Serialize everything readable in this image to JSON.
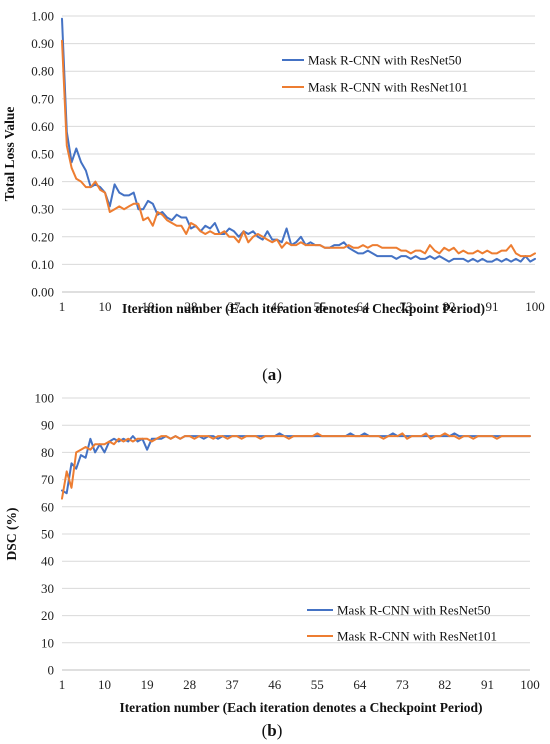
{
  "chart_data": [
    {
      "type": "line",
      "panel_label": "a",
      "xlabel": "Iteration number (Each iteration denotes a Checkpoint Period)",
      "ylabel": "Total Loss Value",
      "xlim": [
        1,
        100
      ],
      "ylim": [
        0,
        1.0
      ],
      "x_ticks": [
        1,
        10,
        19,
        28,
        37,
        46,
        55,
        64,
        73,
        82,
        91,
        100
      ],
      "y_ticks": [
        0.0,
        0.1,
        0.2,
        0.3,
        0.4,
        0.5,
        0.6,
        0.7,
        0.8,
        0.9,
        1.0
      ],
      "y_tick_labels": [
        "0.00",
        "0.10",
        "0.20",
        "0.30",
        "0.40",
        "0.50",
        "0.60",
        "0.70",
        "0.80",
        "0.90",
        "1.00"
      ],
      "grid": "horizontal",
      "legend_position": "top-right",
      "series": [
        {
          "name": "Mask R-CNN with ResNet50",
          "color": "#4472C4",
          "x": [
            1,
            2,
            3,
            4,
            5,
            6,
            7,
            8,
            9,
            10,
            11,
            12,
            13,
            14,
            15,
            16,
            17,
            18,
            19,
            20,
            21,
            22,
            23,
            24,
            25,
            26,
            27,
            28,
            29,
            30,
            31,
            32,
            33,
            34,
            35,
            36,
            37,
            38,
            39,
            40,
            41,
            42,
            43,
            44,
            45,
            46,
            47,
            48,
            49,
            50,
            51,
            52,
            53,
            54,
            55,
            56,
            57,
            58,
            59,
            60,
            61,
            62,
            63,
            64,
            65,
            66,
            67,
            68,
            69,
            70,
            71,
            72,
            73,
            74,
            75,
            76,
            77,
            78,
            79,
            80,
            81,
            82,
            83,
            84,
            85,
            86,
            87,
            88,
            89,
            90,
            91,
            92,
            93,
            94,
            95,
            96,
            97,
            98,
            99,
            100
          ],
          "values": [
            0.99,
            0.58,
            0.47,
            0.52,
            0.47,
            0.44,
            0.38,
            0.39,
            0.38,
            0.36,
            0.31,
            0.39,
            0.36,
            0.35,
            0.35,
            0.36,
            0.3,
            0.3,
            0.33,
            0.32,
            0.28,
            0.29,
            0.27,
            0.26,
            0.28,
            0.27,
            0.27,
            0.23,
            0.24,
            0.22,
            0.24,
            0.23,
            0.25,
            0.21,
            0.21,
            0.23,
            0.22,
            0.2,
            0.22,
            0.21,
            0.22,
            0.2,
            0.19,
            0.22,
            0.19,
            0.19,
            0.18,
            0.23,
            0.17,
            0.18,
            0.2,
            0.17,
            0.18,
            0.17,
            0.17,
            0.16,
            0.16,
            0.17,
            0.17,
            0.18,
            0.16,
            0.15,
            0.14,
            0.14,
            0.15,
            0.14,
            0.13,
            0.13,
            0.13,
            0.13,
            0.12,
            0.13,
            0.13,
            0.12,
            0.13,
            0.12,
            0.12,
            0.13,
            0.12,
            0.13,
            0.12,
            0.11,
            0.12,
            0.12,
            0.12,
            0.11,
            0.12,
            0.11,
            0.12,
            0.11,
            0.11,
            0.12,
            0.11,
            0.12,
            0.11,
            0.12,
            0.11,
            0.13,
            0.11,
            0.12
          ]
        },
        {
          "name": "Mask R-CNN with ResNet101",
          "color": "#ED7D31",
          "x": [
            1,
            2,
            3,
            4,
            5,
            6,
            7,
            8,
            9,
            10,
            11,
            12,
            13,
            14,
            15,
            16,
            17,
            18,
            19,
            20,
            21,
            22,
            23,
            24,
            25,
            26,
            27,
            28,
            29,
            30,
            31,
            32,
            33,
            34,
            35,
            36,
            37,
            38,
            39,
            40,
            41,
            42,
            43,
            44,
            45,
            46,
            47,
            48,
            49,
            50,
            51,
            52,
            53,
            54,
            55,
            56,
            57,
            58,
            59,
            60,
            61,
            62,
            63,
            64,
            65,
            66,
            67,
            68,
            69,
            70,
            71,
            72,
            73,
            74,
            75,
            76,
            77,
            78,
            79,
            80,
            81,
            82,
            83,
            84,
            85,
            86,
            87,
            88,
            89,
            90,
            91,
            92,
            93,
            94,
            95,
            96,
            97,
            98,
            99,
            100
          ],
          "values": [
            0.91,
            0.53,
            0.45,
            0.41,
            0.4,
            0.38,
            0.38,
            0.4,
            0.37,
            0.36,
            0.29,
            0.3,
            0.31,
            0.3,
            0.31,
            0.32,
            0.32,
            0.26,
            0.27,
            0.24,
            0.29,
            0.28,
            0.26,
            0.25,
            0.24,
            0.24,
            0.21,
            0.25,
            0.24,
            0.22,
            0.21,
            0.22,
            0.21,
            0.21,
            0.22,
            0.2,
            0.2,
            0.18,
            0.22,
            0.18,
            0.2,
            0.21,
            0.2,
            0.19,
            0.18,
            0.19,
            0.16,
            0.18,
            0.17,
            0.17,
            0.18,
            0.17,
            0.17,
            0.17,
            0.17,
            0.16,
            0.16,
            0.16,
            0.16,
            0.16,
            0.17,
            0.16,
            0.16,
            0.17,
            0.16,
            0.17,
            0.17,
            0.16,
            0.16,
            0.16,
            0.16,
            0.15,
            0.15,
            0.14,
            0.15,
            0.15,
            0.14,
            0.17,
            0.15,
            0.14,
            0.16,
            0.15,
            0.16,
            0.14,
            0.15,
            0.14,
            0.14,
            0.15,
            0.14,
            0.15,
            0.14,
            0.14,
            0.15,
            0.15,
            0.17,
            0.14,
            0.13,
            0.13,
            0.13,
            0.14
          ]
        }
      ]
    },
    {
      "type": "line",
      "panel_label": "b",
      "xlabel": "Iteration number (Each iteration denotes a Checkpoint Period)",
      "ylabel": "DSC (%)",
      "xlim": [
        1,
        100
      ],
      "ylim": [
        0,
        100
      ],
      "x_ticks": [
        1,
        10,
        19,
        28,
        37,
        46,
        55,
        64,
        73,
        82,
        91,
        100
      ],
      "y_ticks": [
        0,
        10,
        20,
        30,
        40,
        50,
        60,
        70,
        80,
        90,
        100
      ],
      "y_tick_labels": [
        "0",
        "10",
        "20",
        "30",
        "40",
        "50",
        "60",
        "70",
        "80",
        "90",
        "100"
      ],
      "grid": "horizontal",
      "legend_position": "bottom-right",
      "series": [
        {
          "name": "Mask R-CNN with ResNet50",
          "color": "#4472C4",
          "x": [
            1,
            2,
            3,
            4,
            5,
            6,
            7,
            8,
            9,
            10,
            11,
            12,
            13,
            14,
            15,
            16,
            17,
            18,
            19,
            20,
            21,
            22,
            23,
            24,
            25,
            26,
            27,
            28,
            29,
            30,
            31,
            32,
            33,
            34,
            35,
            36,
            37,
            38,
            39,
            40,
            41,
            42,
            43,
            44,
            45,
            46,
            47,
            48,
            49,
            50,
            51,
            52,
            53,
            54,
            55,
            56,
            57,
            58,
            59,
            60,
            61,
            62,
            63,
            64,
            65,
            66,
            67,
            68,
            69,
            70,
            71,
            72,
            73,
            74,
            75,
            76,
            77,
            78,
            79,
            80,
            81,
            82,
            83,
            84,
            85,
            86,
            87,
            88,
            89,
            90,
            91,
            92,
            93,
            94,
            95,
            96,
            97,
            98,
            99,
            100
          ],
          "values": [
            66,
            65,
            76,
            74,
            79,
            78,
            85,
            80,
            83,
            80,
            84,
            85,
            84,
            85,
            84,
            86,
            84,
            85,
            81,
            85,
            85,
            85,
            86,
            85,
            86,
            85,
            86,
            86,
            86,
            86,
            85,
            86,
            86,
            85,
            86,
            86,
            86,
            86,
            86,
            86,
            86,
            86,
            86,
            86,
            86,
            86,
            87,
            86,
            86,
            86,
            86,
            86,
            86,
            86,
            86,
            86,
            86,
            86,
            86,
            86,
            86,
            87,
            86,
            86,
            87,
            86,
            86,
            86,
            86,
            86,
            87,
            86,
            86,
            86,
            86,
            86,
            86,
            86,
            86,
            86,
            86,
            86,
            86,
            87,
            86,
            86,
            86,
            86,
            86,
            86,
            86,
            86,
            86,
            86,
            86,
            86,
            86,
            86,
            86,
            86
          ]
        },
        {
          "name": "Mask R-CNN with ResNet101",
          "color": "#ED7D31",
          "x": [
            1,
            2,
            3,
            4,
            5,
            6,
            7,
            8,
            9,
            10,
            11,
            12,
            13,
            14,
            15,
            16,
            17,
            18,
            19,
            20,
            21,
            22,
            23,
            24,
            25,
            26,
            27,
            28,
            29,
            30,
            31,
            32,
            33,
            34,
            35,
            36,
            37,
            38,
            39,
            40,
            41,
            42,
            43,
            44,
            45,
            46,
            47,
            48,
            49,
            50,
            51,
            52,
            53,
            54,
            55,
            56,
            57,
            58,
            59,
            60,
            61,
            62,
            63,
            64,
            65,
            66,
            67,
            68,
            69,
            70,
            71,
            72,
            73,
            74,
            75,
            76,
            77,
            78,
            79,
            80,
            81,
            82,
            83,
            84,
            85,
            86,
            87,
            88,
            89,
            90,
            91,
            92,
            93,
            94,
            95,
            96,
            97,
            98,
            99,
            100
          ],
          "values": [
            63,
            73,
            67,
            80,
            81,
            82,
            81,
            83,
            83,
            83,
            84,
            83,
            85,
            84,
            85,
            84,
            85,
            85,
            85,
            84,
            85,
            86,
            86,
            85,
            86,
            85,
            86,
            86,
            85,
            86,
            86,
            86,
            85,
            86,
            86,
            85,
            86,
            86,
            85,
            86,
            86,
            86,
            85,
            86,
            86,
            86,
            86,
            86,
            85,
            86,
            86,
            86,
            86,
            86,
            87,
            86,
            86,
            86,
            86,
            86,
            86,
            86,
            86,
            86,
            86,
            86,
            86,
            86,
            85,
            86,
            86,
            86,
            87,
            85,
            86,
            86,
            86,
            87,
            85,
            86,
            86,
            87,
            86,
            86,
            85,
            86,
            86,
            85,
            86,
            86,
            86,
            86,
            85,
            86,
            86,
            86,
            86,
            86,
            86,
            86
          ]
        }
      ]
    }
  ]
}
